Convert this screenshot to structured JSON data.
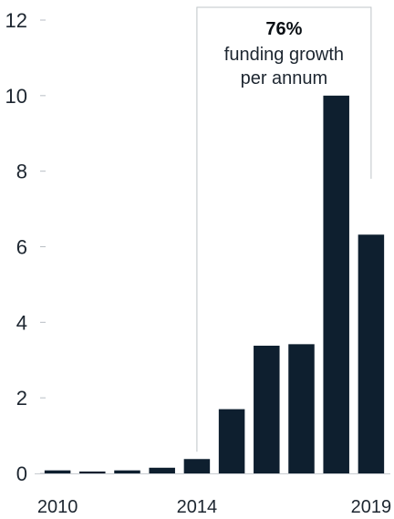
{
  "chart_data": {
    "type": "bar",
    "categories": [
      "2010",
      "2011",
      "2012",
      "2013",
      "2014",
      "2015",
      "2016",
      "2017",
      "2018",
      "2019"
    ],
    "values": [
      0.08,
      0.05,
      0.08,
      0.15,
      0.38,
      1.7,
      3.38,
      3.42,
      10.0,
      6.32
    ],
    "x_tick_labels": [
      "2010",
      "2014",
      "2019"
    ],
    "y_ticks": [
      0,
      2,
      4,
      6,
      8,
      10,
      12
    ],
    "ylim": [
      0,
      12
    ],
    "title": "",
    "xlabel": "",
    "ylabel": "",
    "grid": false,
    "bar_color": "#0e1f2f",
    "annotation": {
      "value": "76%",
      "line1": "funding growth",
      "line2": "per annum",
      "from_category": "2014",
      "to_category": "2019"
    }
  }
}
